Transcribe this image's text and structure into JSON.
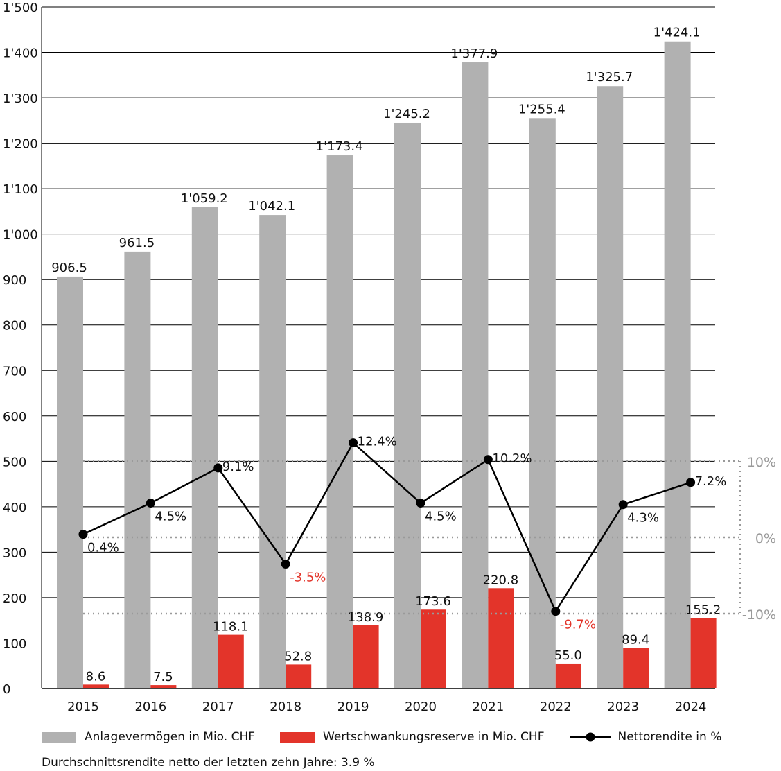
{
  "chart_data": {
    "type": "bar",
    "categories": [
      "2015",
      "2016",
      "2017",
      "2018",
      "2019",
      "2020",
      "2021",
      "2022",
      "2023",
      "2024"
    ],
    "series": [
      {
        "name": "Anlagevermögen in Mio. CHF",
        "type": "bar",
        "axis": "left",
        "color": "#b1b1b1",
        "values": [
          906.5,
          961.5,
          1059.2,
          1042.1,
          1173.4,
          1245.2,
          1377.9,
          1255.4,
          1325.7,
          1424.1
        ],
        "labels": [
          "906.5",
          "961.5",
          "1'059.2",
          "1'042.1",
          "1'173.4",
          "1'245.2",
          "1'377.9",
          "1'255.4",
          "1'325.7",
          "1'424.1"
        ]
      },
      {
        "name": "Wertschwankungsreserve in Mio. CHF",
        "type": "bar",
        "axis": "left",
        "color": "#e3342a",
        "values": [
          8.6,
          7.5,
          118.1,
          52.8,
          138.9,
          173.6,
          220.8,
          55.0,
          89.4,
          155.2
        ],
        "labels": [
          "8.6",
          "7.5",
          "118.1",
          "52.8",
          "138.9",
          "173.6",
          "220.8",
          "55.0",
          "89.4",
          "155.2"
        ]
      },
      {
        "name": "Nettorendite in %",
        "type": "line",
        "axis": "right",
        "color": "#000000",
        "values": [
          0.4,
          4.5,
          9.1,
          -3.5,
          12.4,
          4.5,
          10.2,
          -9.7,
          4.3,
          7.2
        ],
        "labels": [
          "0.4%",
          "4.5%",
          "9.1%",
          "-3.5%",
          "12.4%",
          "4.5%",
          "10.2%",
          "-9.7%",
          "4.3%",
          "7.2%"
        ]
      }
    ],
    "left_axis": {
      "ylim": [
        0,
        1500
      ],
      "ticks": [
        0,
        100,
        200,
        300,
        400,
        500,
        600,
        700,
        800,
        900,
        1000,
        1100,
        1200,
        1300,
        1400,
        1500
      ],
      "tick_labels": [
        "0",
        "100",
        "200",
        "300",
        "400",
        "500",
        "600",
        "700",
        "800",
        "900",
        "1'000",
        "1'100",
        "1'200",
        "1'300",
        "1'400",
        "1'500"
      ]
    },
    "right_axis": {
      "ticks": [
        10,
        0,
        -10
      ],
      "tick_labels": [
        "10%",
        "0%",
        "-10%"
      ]
    },
    "negative_color": "#e3342a",
    "grid": true,
    "legend_position": "bottom",
    "footnote": "Durchschnittsrendite netto der letzten zehn Jahre: 3.9 %"
  }
}
